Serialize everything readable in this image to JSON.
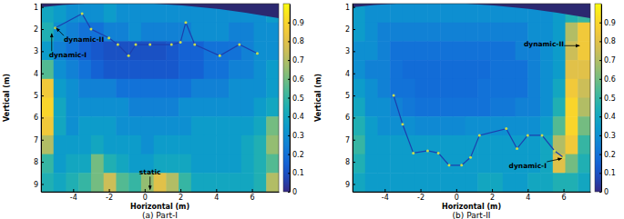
{
  "chart_data": [
    {
      "type": "heatmap",
      "title": "(a) Part-I",
      "xlabel": "Horizontal (m)",
      "ylabel": "Vertical (m)",
      "xlim": [
        -5.8,
        7.5
      ],
      "ylim": [
        0.85,
        9.35
      ],
      "xticks": [
        -4,
        -2,
        0,
        2,
        4,
        6
      ],
      "yticks": [
        1,
        2,
        3,
        4,
        5,
        6,
        7,
        8,
        9
      ],
      "cells": [
        [
          0.4,
          0.35,
          0.3,
          0.3,
          0.3,
          0.35,
          0.3,
          0.3,
          0.3,
          0.3,
          0.3,
          0.3,
          0.3,
          0.3,
          0.3,
          0.3,
          0.3,
          0.3,
          0.35
        ],
        [
          0.45,
          0.3,
          0.25,
          0.2,
          0.2,
          0.25,
          0.25,
          0.3,
          0.25,
          0.25,
          0.25,
          0.25,
          0.3,
          0.3,
          0.3,
          0.25,
          0.25,
          0.3,
          0.3
        ],
        [
          0.35,
          0.25,
          0.2,
          0.15,
          0.12,
          0.1,
          0.1,
          0.1,
          0.1,
          0.1,
          0.12,
          0.15,
          0.15,
          0.2,
          0.2,
          0.2,
          0.25,
          0.3,
          0.3
        ],
        [
          0.55,
          0.3,
          0.25,
          0.2,
          0.15,
          0.12,
          0.12,
          0.12,
          0.12,
          0.12,
          0.12,
          0.15,
          0.15,
          0.2,
          0.2,
          0.25,
          0.25,
          0.3,
          0.35
        ],
        [
          0.85,
          0.35,
          0.3,
          0.25,
          0.25,
          0.25,
          0.2,
          0.2,
          0.2,
          0.2,
          0.2,
          0.2,
          0.25,
          0.25,
          0.25,
          0.3,
          0.3,
          0.3,
          0.35
        ],
        [
          0.9,
          0.4,
          0.3,
          0.3,
          0.3,
          0.3,
          0.3,
          0.25,
          0.25,
          0.25,
          0.25,
          0.3,
          0.3,
          0.3,
          0.3,
          0.3,
          0.3,
          0.35,
          0.4
        ],
        [
          0.85,
          0.4,
          0.3,
          0.35,
          0.35,
          0.35,
          0.3,
          0.3,
          0.3,
          0.3,
          0.3,
          0.3,
          0.35,
          0.35,
          0.35,
          0.35,
          0.35,
          0.4,
          0.6
        ],
        [
          0.7,
          0.35,
          0.35,
          0.35,
          0.4,
          0.35,
          0.35,
          0.35,
          0.3,
          0.35,
          0.35,
          0.35,
          0.35,
          0.35,
          0.35,
          0.35,
          0.4,
          0.45,
          0.65
        ],
        [
          0.5,
          0.35,
          0.4,
          0.4,
          0.6,
          0.45,
          0.4,
          0.35,
          0.35,
          0.4,
          0.4,
          0.4,
          0.35,
          0.35,
          0.35,
          0.35,
          0.4,
          0.45,
          0.55
        ],
        [
          0.45,
          0.4,
          0.45,
          0.5,
          0.6,
          0.75,
          0.55,
          0.5,
          0.65,
          0.8,
          0.7,
          0.5,
          0.4,
          0.4,
          0.4,
          0.4,
          0.4,
          0.45,
          0.7
        ]
      ],
      "colorbar": {
        "range": [
          0,
          1
        ],
        "ticks": [
          0,
          0.1,
          0.2,
          0.3,
          0.4,
          0.5,
          0.6,
          0.7,
          0.8,
          0.9
        ]
      },
      "series": [
        {
          "color": "#1c3fae",
          "marker": "dot",
          "line_style": "solid",
          "x": [
            -5.0,
            -3.5,
            -3.0,
            -2.0,
            -1.5,
            -0.9,
            -0.5,
            0.3,
            1.5,
            2.0,
            2.3,
            2.8,
            4.2,
            5.3,
            6.3
          ],
          "values": [
            1.95,
            1.3,
            2.0,
            2.4,
            2.7,
            3.2,
            2.7,
            2.7,
            2.7,
            2.6,
            1.7,
            2.7,
            3.2,
            2.7,
            3.1
          ]
        }
      ],
      "annotations": [
        {
          "text": "dynamic-II",
          "x": -4.95,
          "y": 1.95,
          "text_x": -3.4,
          "text_y": 2.5
        },
        {
          "text": "dynamic-I",
          "x": -5.2,
          "y": 2.2,
          "text_x": -4.3,
          "text_y": 3.2
        },
        {
          "text": "static",
          "x": 0.3,
          "y": 9.25,
          "text_x": 0.3,
          "text_y": 8.5
        }
      ]
    },
    {
      "type": "heatmap",
      "title": "(b) Part-II",
      "xlabel": "Horizontal (m)",
      "ylabel": "Vertical (m)",
      "xlim": [
        -5.8,
        7.5
      ],
      "ylim": [
        0.85,
        9.35
      ],
      "xticks": [
        -4,
        -2,
        0,
        2,
        4,
        6
      ],
      "yticks": [
        1,
        2,
        3,
        4,
        5,
        6,
        7,
        8,
        9
      ],
      "cells": [
        [
          0.35,
          0.3,
          0.3,
          0.3,
          0.3,
          0.3,
          0.3,
          0.3,
          0.3,
          0.3,
          0.3,
          0.3,
          0.3,
          0.3,
          0.3,
          0.3,
          0.35,
          0.45,
          0.5
        ],
        [
          0.35,
          0.3,
          0.25,
          0.25,
          0.25,
          0.25,
          0.25,
          0.25,
          0.25,
          0.25,
          0.25,
          0.25,
          0.25,
          0.25,
          0.3,
          0.3,
          0.35,
          0.7,
          0.85
        ],
        [
          0.3,
          0.3,
          0.25,
          0.2,
          0.2,
          0.2,
          0.2,
          0.2,
          0.2,
          0.2,
          0.2,
          0.2,
          0.2,
          0.25,
          0.25,
          0.3,
          0.35,
          0.75,
          0.85
        ],
        [
          0.3,
          0.25,
          0.25,
          0.2,
          0.18,
          0.18,
          0.18,
          0.18,
          0.18,
          0.18,
          0.18,
          0.2,
          0.2,
          0.2,
          0.25,
          0.3,
          0.35,
          0.8,
          0.8
        ],
        [
          0.35,
          0.3,
          0.25,
          0.2,
          0.2,
          0.18,
          0.18,
          0.18,
          0.18,
          0.18,
          0.2,
          0.2,
          0.2,
          0.2,
          0.25,
          0.3,
          0.4,
          0.85,
          0.75
        ],
        [
          0.4,
          0.3,
          0.3,
          0.25,
          0.22,
          0.2,
          0.2,
          0.2,
          0.2,
          0.2,
          0.2,
          0.22,
          0.22,
          0.25,
          0.25,
          0.3,
          0.45,
          0.9,
          0.7
        ],
        [
          0.45,
          0.35,
          0.3,
          0.3,
          0.3,
          0.28,
          0.28,
          0.28,
          0.28,
          0.3,
          0.3,
          0.3,
          0.3,
          0.3,
          0.3,
          0.35,
          0.55,
          0.9,
          0.6
        ],
        [
          0.5,
          0.35,
          0.35,
          0.35,
          0.35,
          0.35,
          0.35,
          0.35,
          0.35,
          0.35,
          0.35,
          0.35,
          0.35,
          0.35,
          0.35,
          0.4,
          0.7,
          0.85,
          0.5
        ],
        [
          0.45,
          0.35,
          0.35,
          0.35,
          0.35,
          0.35,
          0.35,
          0.35,
          0.35,
          0.35,
          0.35,
          0.35,
          0.35,
          0.35,
          0.35,
          0.4,
          0.8,
          0.6,
          0.45
        ],
        [
          0.4,
          0.35,
          0.35,
          0.35,
          0.35,
          0.35,
          0.35,
          0.35,
          0.35,
          0.35,
          0.4,
          0.4,
          0.35,
          0.35,
          0.4,
          0.4,
          0.45,
          0.45,
          0.4
        ]
      ],
      "colorbar": {
        "range": [
          0,
          1
        ],
        "ticks": [
          0,
          0.1,
          0.2,
          0.3,
          0.4,
          0.5,
          0.6,
          0.7,
          0.8,
          0.9
        ]
      },
      "series": [
        {
          "color": "#1c3fae",
          "marker": "dot",
          "line_style": "solid",
          "x": [
            -3.5,
            -3.0,
            -2.4,
            -1.6,
            -1.0,
            -0.4,
            0.3,
            0.8,
            1.3,
            2.8,
            3.4,
            4.0,
            4.8,
            5.5,
            6.0
          ],
          "values": [
            5.0,
            6.3,
            7.6,
            7.5,
            7.6,
            8.15,
            8.15,
            7.8,
            6.8,
            6.5,
            7.4,
            6.8,
            6.8,
            7.5,
            7.8
          ]
        }
      ],
      "annotations": [
        {
          "text": "dynamic-II",
          "x": 6.9,
          "y": 2.75,
          "text_x": 4.9,
          "text_y": 2.7
        },
        {
          "text": "dynamic-I",
          "x": 5.9,
          "y": 7.85,
          "text_x": 4.0,
          "text_y": 8.2
        }
      ]
    }
  ]
}
